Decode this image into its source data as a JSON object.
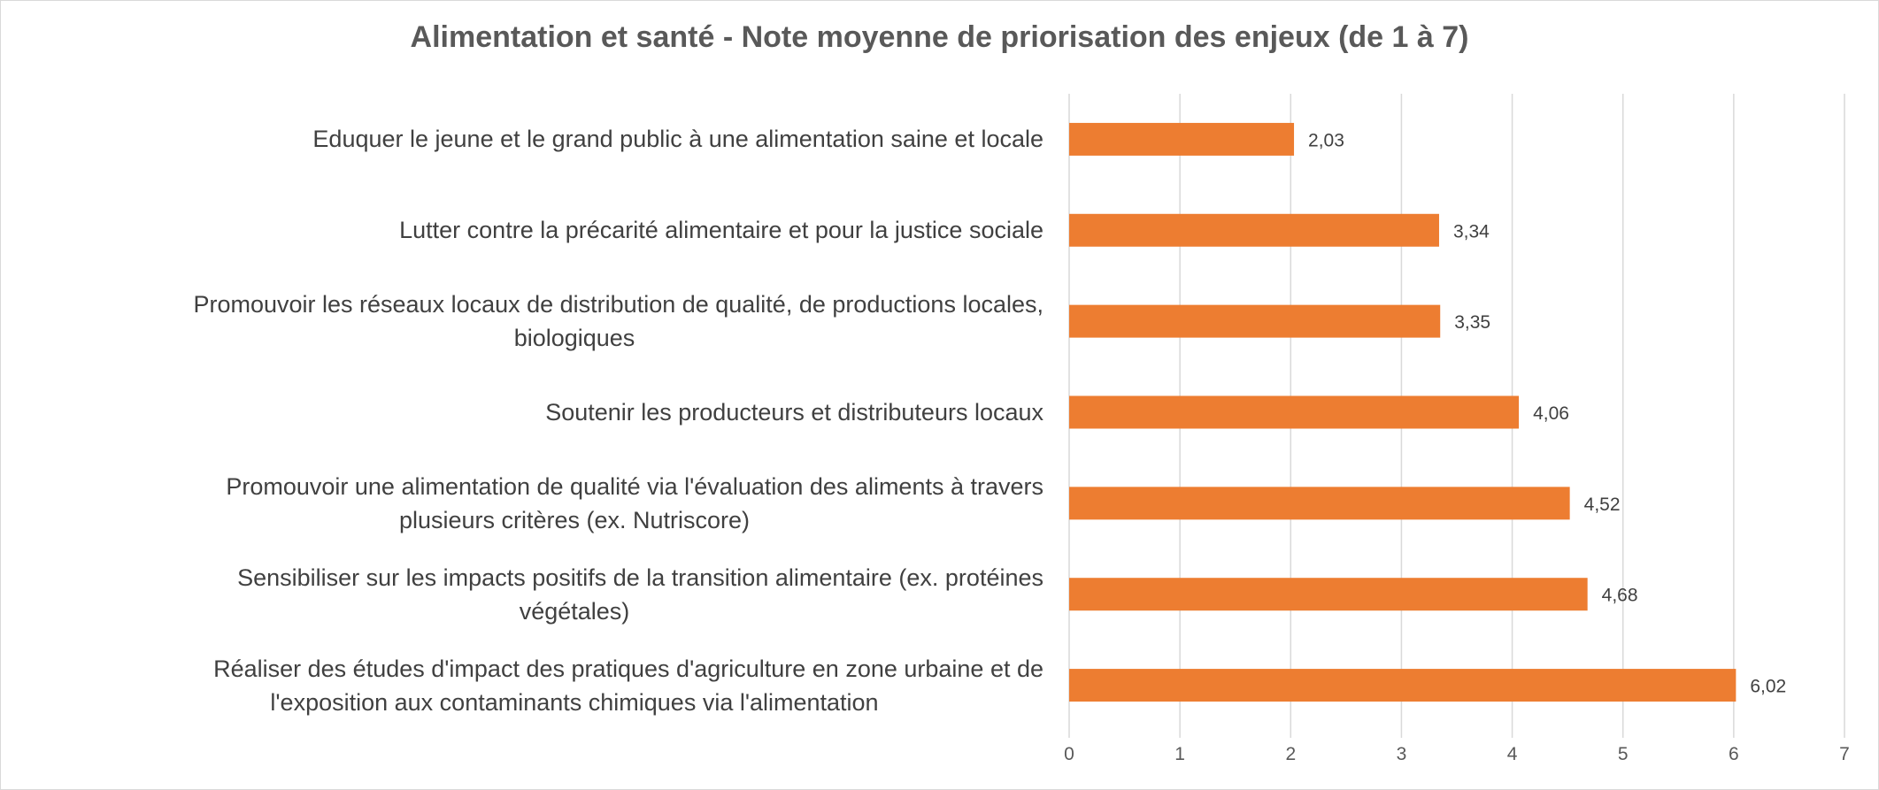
{
  "chart_data": {
    "type": "bar",
    "orientation": "horizontal",
    "title": "Alimentation et santé - Note moyenne de priorisation des enjeux (de 1 à 7)",
    "categories": [
      "Eduquer le jeune et le grand public à une alimentation saine et locale",
      "Lutter contre la précarité alimentaire et pour la justice sociale",
      "Promouvoir les réseaux locaux de distribution de qualité, de productions locales, biologiques",
      "Soutenir les producteurs et distributeurs locaux",
      "Promouvoir une alimentation de qualité via l'évaluation des aliments à travers plusieurs critères (ex. Nutriscore)",
      "Sensibiliser sur les impacts positifs de la transition alimentaire (ex. protéines végétales)",
      "Réaliser des études d'impact des pratiques d'agriculture en zone urbaine et de l'exposition aux contaminants chimiques via l'alimentation"
    ],
    "category_lines": [
      [
        "Eduquer le jeune et le grand public à une alimentation saine et locale"
      ],
      [
        "Lutter contre la précarité alimentaire et pour la justice sociale"
      ],
      [
        "Promouvoir les réseaux locaux de distribution de qualité, de productions locales,",
        "biologiques"
      ],
      [
        "Soutenir les producteurs et distributeurs locaux"
      ],
      [
        "Promouvoir une alimentation de qualité via l'évaluation des aliments à travers",
        "plusieurs critères (ex. Nutriscore)"
      ],
      [
        "Sensibiliser sur les impacts positifs de la transition alimentaire (ex. protéines",
        "végétales)"
      ],
      [
        "Réaliser des études d'impact des pratiques d'agriculture en zone urbaine et de",
        "l'exposition aux contaminants chimiques via l'alimentation"
      ]
    ],
    "values": [
      2.03,
      3.34,
      3.35,
      4.06,
      4.52,
      4.68,
      6.02
    ],
    "data_labels": [
      "2,03",
      "3,34",
      "3,35",
      "4,06",
      "4,52",
      "4,68",
      "6,02"
    ],
    "xlim": [
      0,
      7
    ],
    "xticks": [
      0,
      1,
      2,
      3,
      4,
      5,
      6,
      7
    ],
    "xtick_labels": [
      "0",
      "1",
      "2",
      "3",
      "4",
      "5",
      "6",
      "7"
    ],
    "xlabel": "",
    "ylabel": "",
    "grid": "vertical",
    "legend": "none",
    "bar_color": "#ED7D31",
    "grid_color": "#d9d9d9",
    "label_color": "#404040"
  }
}
